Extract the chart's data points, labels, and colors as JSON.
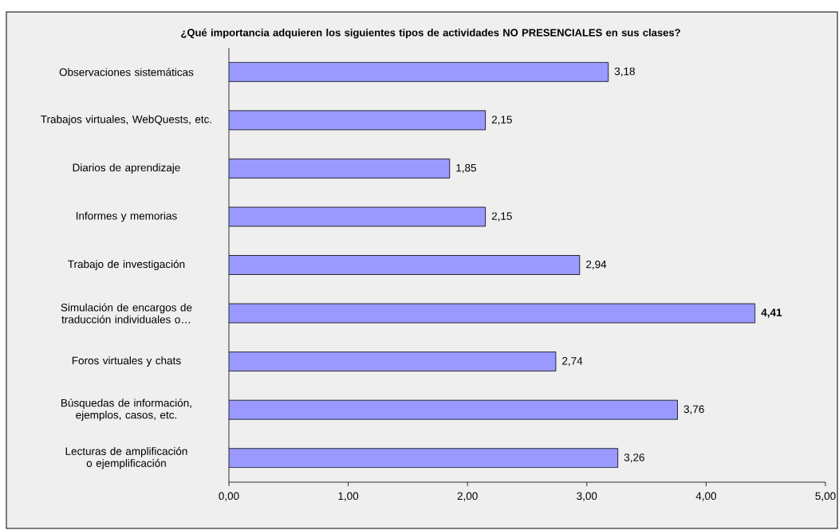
{
  "chart_data": {
    "type": "bar",
    "orientation": "horizontal",
    "title": "¿Qué importancia adquieren los siguientes tipos de actividades NO PRESENCIALES en sus clases?",
    "categories": [
      "Observaciones sistemáticas",
      "Trabajos virtuales, WebQuests, etc.",
      "Diarios de aprendizaje",
      "Informes y memorias",
      "Trabajo de investigación",
      "Simulación de encargos de traducción individuales o…",
      "Foros virtuales y chats",
      "Búsquedas de información, ejemplos, casos, etc.",
      "Lecturas de amplificación o ejemplificación"
    ],
    "values": [
      3.18,
      2.15,
      1.85,
      2.15,
      2.94,
      4.41,
      2.74,
      3.76,
      3.26
    ],
    "value_labels": [
      "3,18",
      "2,15",
      "1,85",
      "2,15",
      "2,94",
      "**4,41**",
      "2,74",
      "3,76",
      "3,26"
    ],
    "color": "#9999ff",
    "xlim": [
      0,
      5
    ],
    "xticks": [
      {
        "value": 0,
        "label": "0,00"
      },
      {
        "value": 1,
        "label": "1,00"
      },
      {
        "value": 2,
        "label": "2,00"
      },
      {
        "value": 3,
        "label": "3,00"
      },
      {
        "value": 4,
        "label": "4,00"
      },
      {
        "value": 5,
        "label": "5,00"
      }
    ],
    "grid": false
  }
}
